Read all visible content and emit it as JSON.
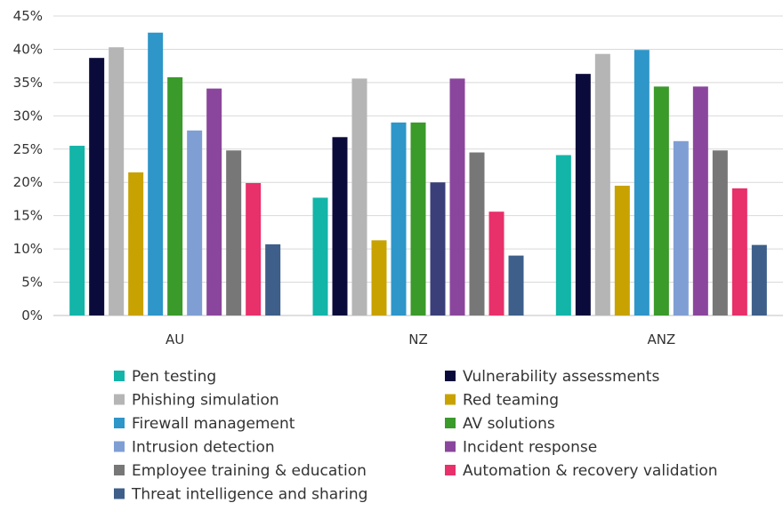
{
  "chart_data": {
    "type": "bar",
    "categories": [
      "AU",
      "NZ",
      "ANZ"
    ],
    "ylim": [
      0,
      45
    ],
    "yticks": [
      "0%",
      "5%",
      "10%",
      "15%",
      "20%",
      "25%",
      "30%",
      "35%",
      "40%",
      "45%"
    ],
    "grid": true,
    "legend_position": "bottom",
    "series": [
      {
        "name": "Pen testing",
        "color": "#12b5a8",
        "values": [
          25.5,
          17.7,
          24.1
        ]
      },
      {
        "name": "Vulnerability assessments",
        "color": "#0b0b3b",
        "values": [
          38.7,
          26.8,
          36.3
        ]
      },
      {
        "name": "Phishing simulation",
        "color": "#b5b5b5",
        "values": [
          40.3,
          35.6,
          39.3
        ]
      },
      {
        "name": "Red teaming",
        "color": "#c8a200",
        "values": [
          21.5,
          11.3,
          19.5
        ]
      },
      {
        "name": "Firewall management",
        "color": "#2e96c8",
        "values": [
          42.5,
          29.0,
          39.9
        ]
      },
      {
        "name": "AV solutions",
        "color": "#3a9a2a",
        "values": [
          35.8,
          29.0,
          34.4
        ]
      },
      {
        "name": "Intrusion detection",
        "color": "#7f9ed4",
        "values": [
          27.8,
          20.0,
          26.2
        ]
      },
      {
        "name": "Incident response",
        "color": "#8a469c",
        "values": [
          34.1,
          35.6,
          34.4
        ]
      },
      {
        "name": "Employee training & education",
        "color": "#777777",
        "values": [
          24.8,
          24.5,
          24.8
        ]
      },
      {
        "name": "Automation & recovery validation",
        "color": "#e8306a",
        "values": [
          19.9,
          15.6,
          19.1
        ]
      },
      {
        "name": "Threat intelligence and sharing",
        "color": "#3d5f8a",
        "values": [
          10.7,
          9.0,
          10.6
        ]
      }
    ],
    "overrides": {
      "NZ": {
        "Intrusion detection": "#3a3f7a"
      }
    }
  }
}
